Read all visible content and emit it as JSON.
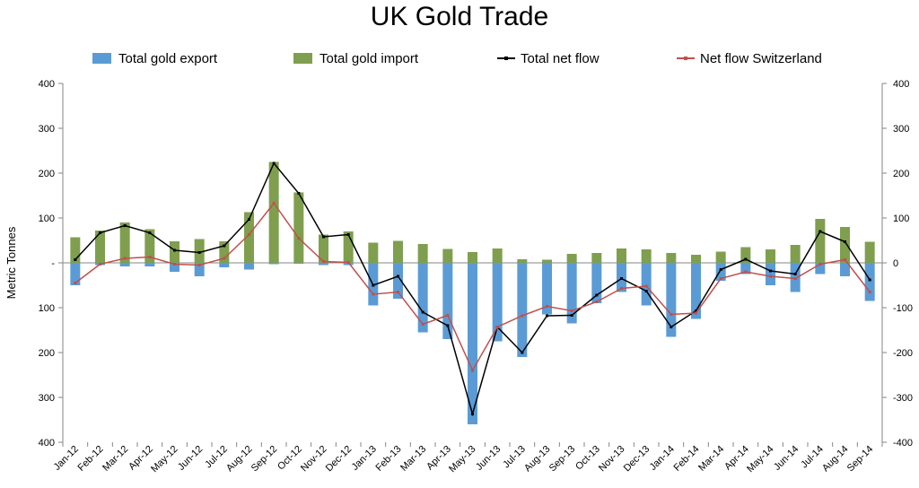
{
  "chart_data": {
    "type": "bar",
    "title": "UK Gold Trade",
    "ylabel": "Metric Tonnes",
    "xlabel": "",
    "ylim": [
      -400,
      400
    ],
    "y_ticks": [
      400,
      300,
      200,
      100,
      0,
      -100,
      -200,
      -300,
      -400
    ],
    "y_tick_labels_left": [
      "400",
      "300",
      "200",
      "100",
      "-",
      "100",
      "200",
      "300",
      "400"
    ],
    "y_tick_labels_right": [
      "400",
      "300",
      "200",
      "100",
      "0",
      "-100",
      "-200",
      "-300",
      "-400"
    ],
    "grid": false,
    "legend_position": "top",
    "categories": [
      "Jan-12",
      "Feb-12",
      "Mar-12",
      "Apr-12",
      "May-12",
      "Jun-12",
      "Jul-12",
      "Aug-12",
      "Sep-12",
      "Oct-12",
      "Nov-12",
      "Dec-12",
      "Jan-13",
      "Feb-13",
      "Mar-13",
      "Apr-13",
      "May-13",
      "Jun-13",
      "Jul-13",
      "Aug-13",
      "Sep-13",
      "Oct-13",
      "Nov-13",
      "Dec-13",
      "Jan-14",
      "Feb-14",
      "Mar-14",
      "Apr-14",
      "May-14",
      "Jun-14",
      "Jul-14",
      "Aug-14",
      "Sep-14"
    ],
    "series": [
      {
        "name": "Total gold export",
        "kind": "bar",
        "color": "#5B9BD5",
        "values": [
          -50,
          -5,
          -8,
          -8,
          -20,
          -30,
          -10,
          -15,
          -3,
          -2,
          -5,
          -5,
          -95,
          -80,
          -155,
          -170,
          -360,
          -175,
          -210,
          -115,
          -135,
          -90,
          -65,
          -95,
          -165,
          -125,
          -40,
          -25,
          -50,
          -65,
          -25,
          -30,
          -85
        ]
      },
      {
        "name": "Total gold import",
        "kind": "bar",
        "color": "#7F9F4F",
        "values": [
          57,
          72,
          90,
          75,
          48,
          53,
          48,
          113,
          225,
          157,
          63,
          70,
          45,
          49,
          42,
          31,
          24,
          32,
          8,
          7,
          20,
          22,
          32,
          30,
          22,
          18,
          25,
          35,
          30,
          40,
          98,
          80,
          47
        ]
      },
      {
        "name": "Total net flow",
        "kind": "line",
        "color": "#000000",
        "values": [
          7,
          67,
          83,
          67,
          28,
          23,
          38,
          97,
          222,
          155,
          58,
          63,
          -50,
          -30,
          -110,
          -140,
          -337,
          -143,
          -200,
          -118,
          -117,
          -72,
          -35,
          -63,
          -143,
          -107,
          -15,
          8,
          -18,
          -25,
          70,
          47,
          -38
        ]
      },
      {
        "name": "Net flow Switzerland",
        "kind": "line",
        "color": "#C0504D",
        "values": [
          -45,
          -3,
          10,
          13,
          -3,
          -5,
          10,
          63,
          133,
          55,
          3,
          1,
          -70,
          -65,
          -137,
          -117,
          -240,
          -143,
          -118,
          -97,
          -107,
          -87,
          -57,
          -52,
          -115,
          -112,
          -35,
          -20,
          -30,
          -35,
          -3,
          7,
          -65
        ]
      }
    ]
  }
}
